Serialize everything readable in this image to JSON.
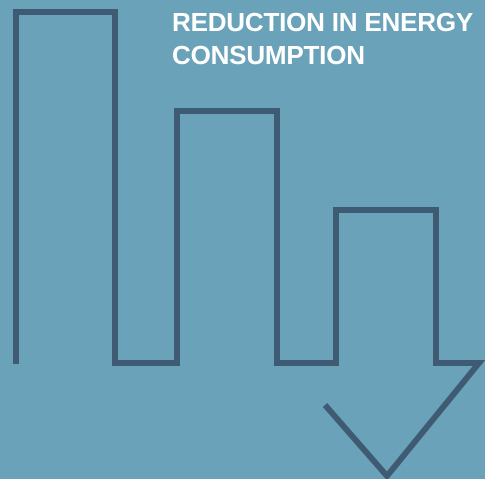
{
  "headline": "REDUCTION IN ENERGY CONSUMPTION",
  "icon": "declining-bars-arrow-icon",
  "colors": {
    "background": "#6aa3b9",
    "stroke": "#3f5a73",
    "headline_text": "#ffffff"
  }
}
